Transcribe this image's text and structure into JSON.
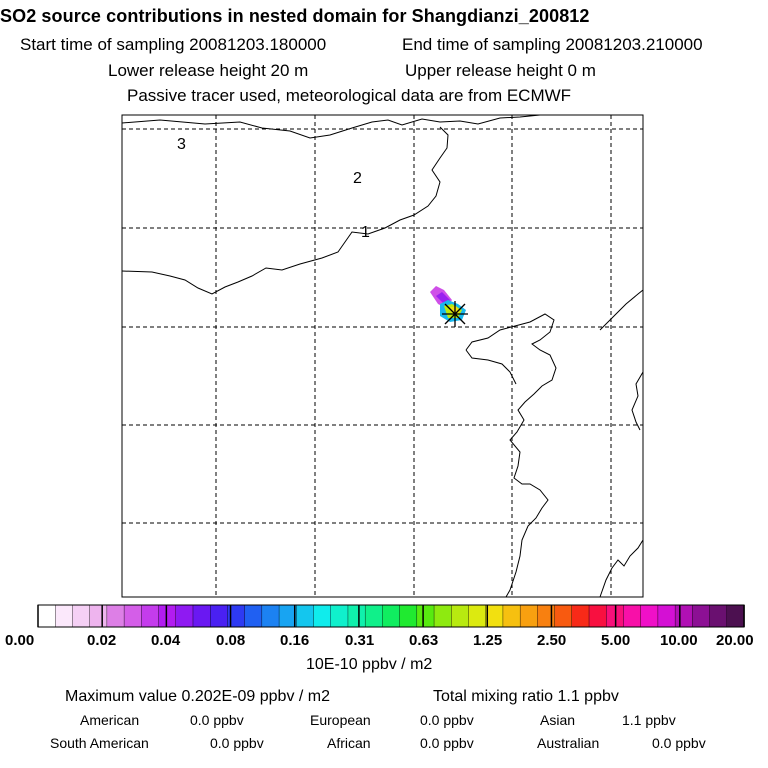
{
  "title": "SO2 source contributions in nested domain for Shangdianzi_200812",
  "start_label": "Start time of sampling 20081203.180000",
  "end_label": "End time of sampling 20081203.210000",
  "lower_release": "Lower release height   20 m",
  "upper_release": "Upper release height    0 m",
  "tracer_note": "Passive tracer used, meteorological data are from ECMWF",
  "map": {
    "contour_labels": [
      "3",
      "2",
      "1"
    ]
  },
  "colorbar": {
    "tick_labels": [
      "0.00",
      "0.02",
      "0.04",
      "0.08",
      "0.16",
      "0.31",
      "0.63",
      "1.25",
      "2.50",
      "5.00",
      "10.00",
      "20.00"
    ],
    "colors": [
      "#ffffff",
      "#fbe8fb",
      "#f5d0f5",
      "#eeb4ee",
      "#dd7fe6",
      "#d45ee8",
      "#c43cec",
      "#b21cf0",
      "#8f1af2",
      "#6a18f2",
      "#4a20f2",
      "#2e3af2",
      "#2060f2",
      "#1c82f2",
      "#18a4f2",
      "#14c6ee",
      "#10ecec",
      "#10f0cc",
      "#10f0ac",
      "#10f08a",
      "#10ee60",
      "#20ea30",
      "#58ea10",
      "#8eea10",
      "#b8ea10",
      "#dcea10",
      "#f2e010",
      "#f6c010",
      "#f8a010",
      "#f88010",
      "#f85a10",
      "#f82a18",
      "#f81040",
      "#f8107a",
      "#f810a8",
      "#f010c8",
      "#d410d4",
      "#b010b4",
      "#8c1094",
      "#6a1070",
      "#4c1050"
    ],
    "units": "10E-10 ppbv / m2"
  },
  "stats": {
    "max_value": "Maximum value  0.202E-09 ppbv / m2",
    "total_mixing": "Total mixing ratio       1.1 ppbv",
    "american": "American",
    "american_val": "0.0 ppbv",
    "european": "European",
    "european_val": "0.0 ppbv",
    "asian": "Asian",
    "asian_val": "1.1 ppbv",
    "south_american": "South American",
    "south_american_val": "0.0 ppbv",
    "african": "African",
    "african_val": "0.0 ppbv",
    "australian": "Australian",
    "australian_val": "0.0 ppbv"
  }
}
